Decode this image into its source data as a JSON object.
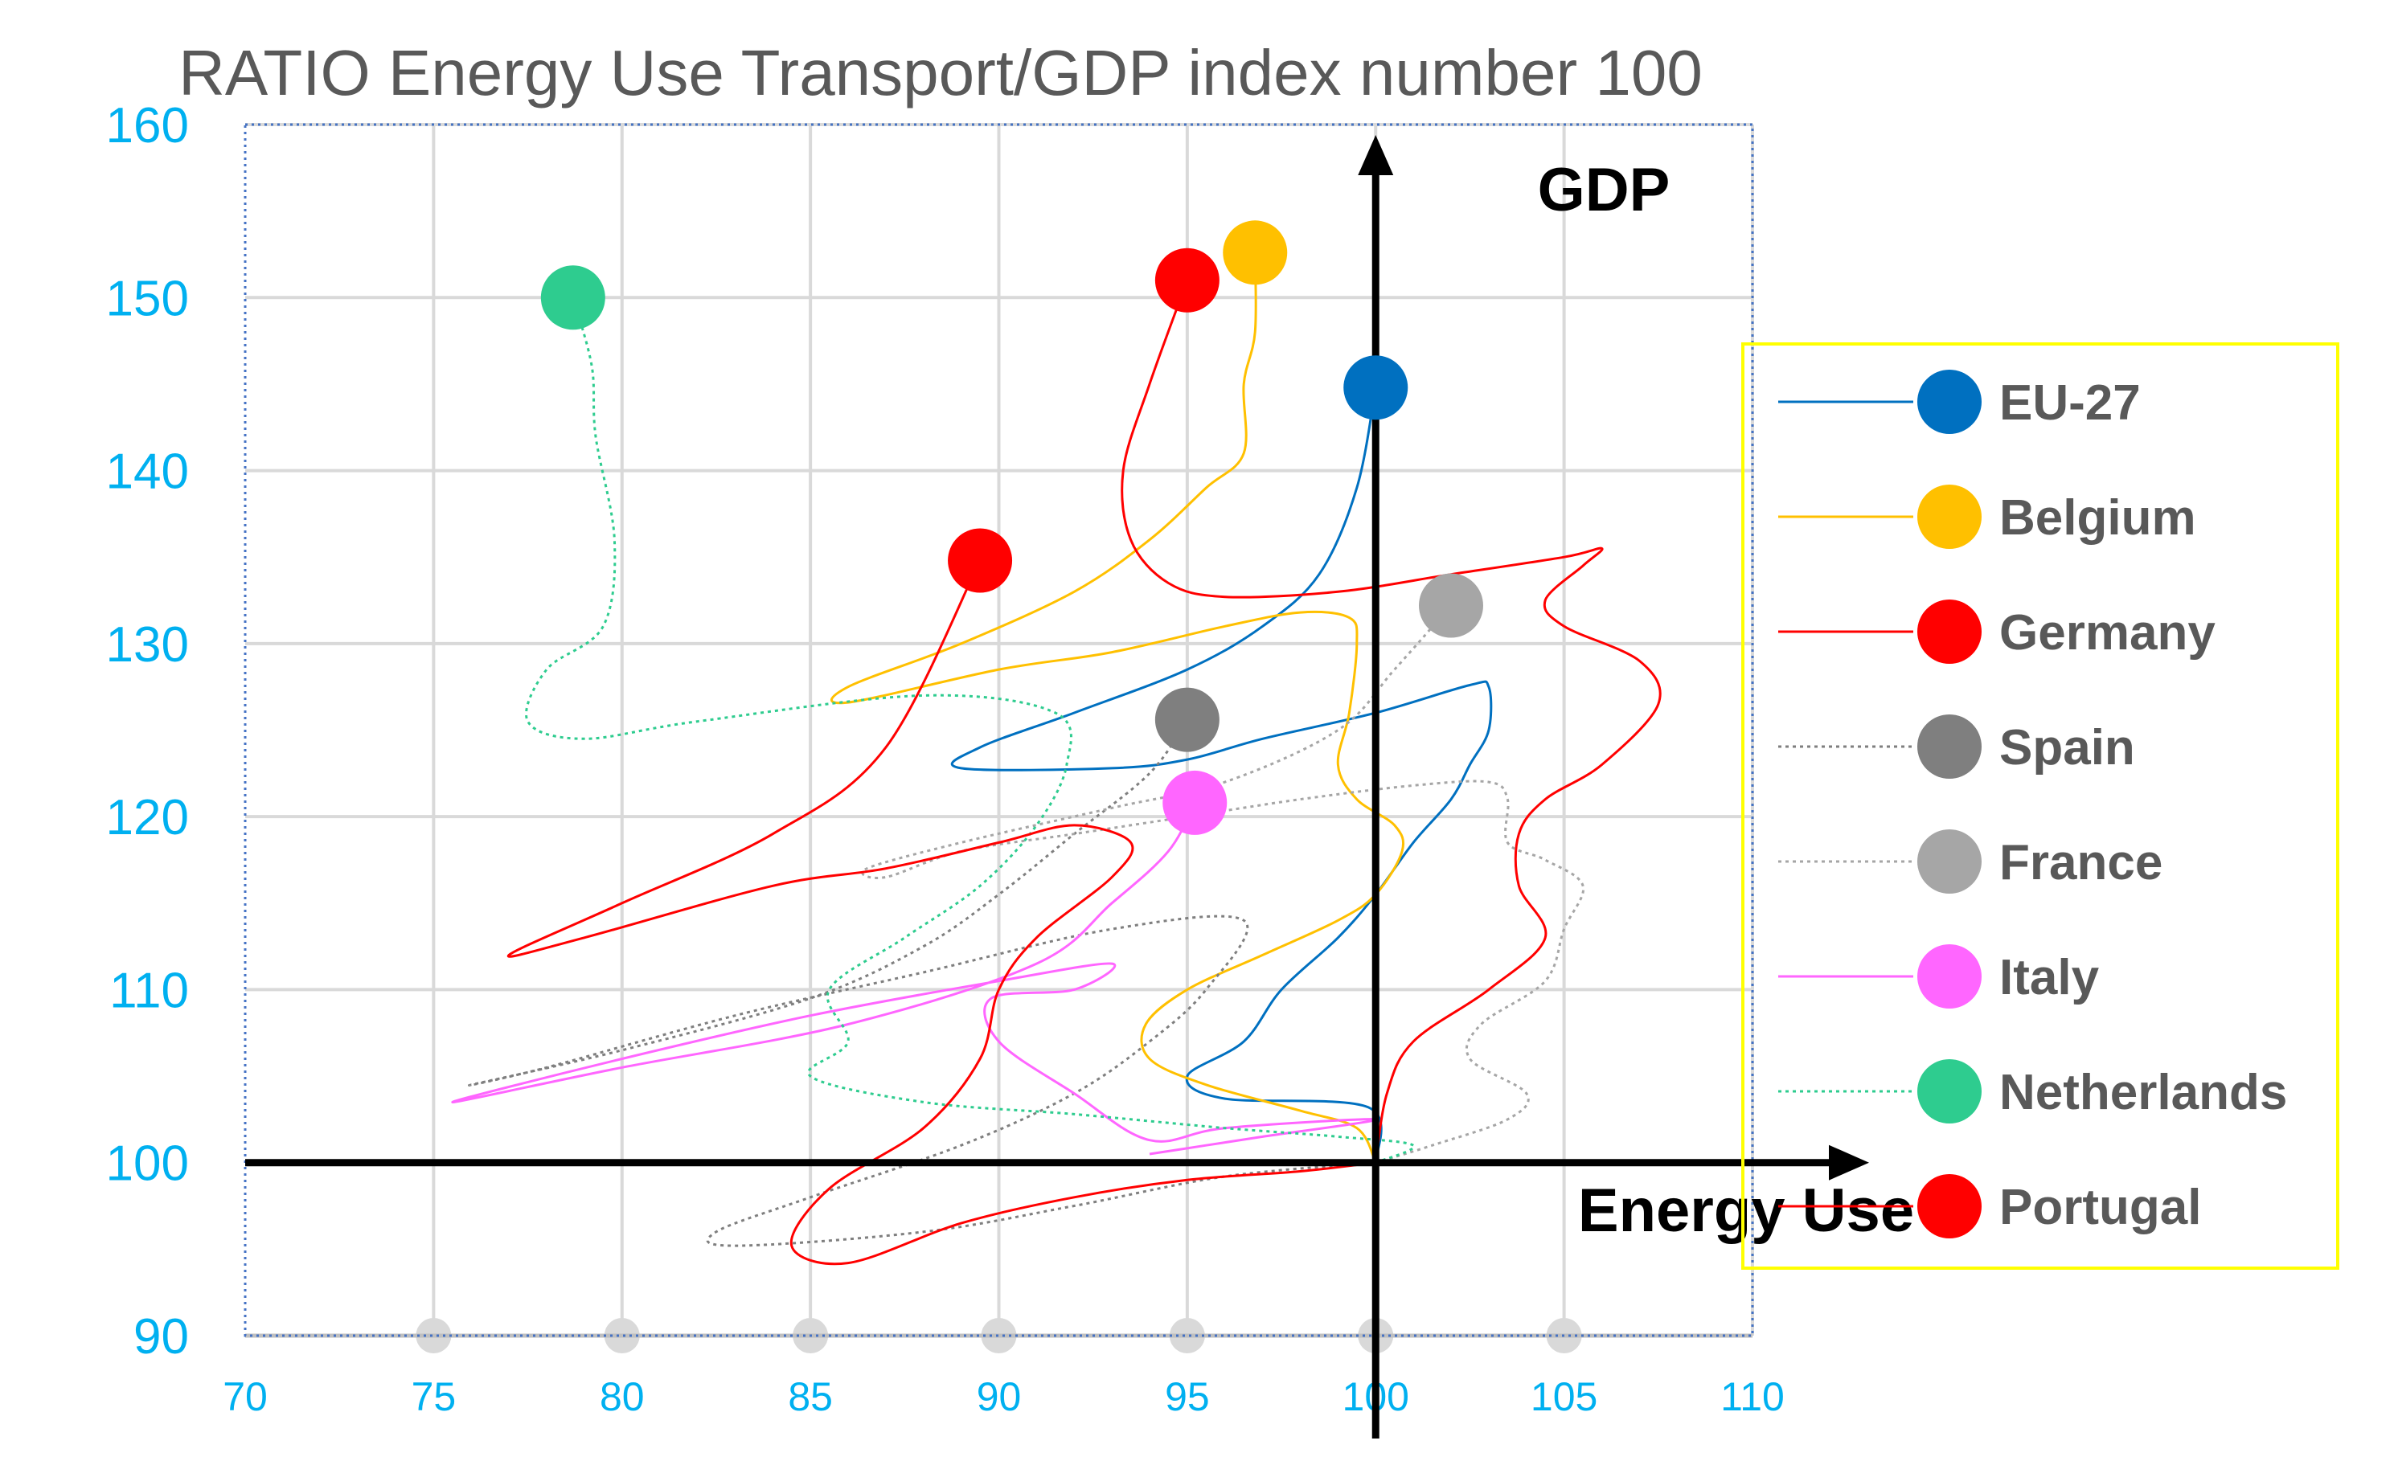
{
  "chart_data": {
    "type": "scatter",
    "title": "RATIO Energy Use Transport/GDP index number 100",
    "xlabel": "Energy Use",
    "ylabel": "GDP",
    "xlim": [
      70,
      110
    ],
    "ylim": [
      90,
      160
    ],
    "x_ticks": [
      70,
      75,
      80,
      85,
      90,
      95,
      100,
      105,
      110
    ],
    "y_ticks": [
      90,
      100,
      110,
      120,
      130,
      140,
      150,
      160
    ],
    "grid": true,
    "legend_position": "right",
    "colors": {
      "tick_label": "#00b0f0",
      "title": "#595959",
      "gridline": "#d9d9d9",
      "legend_border": "#ffff00"
    },
    "series": [
      {
        "name": "EU-27",
        "color": "#0070c0",
        "dash": "solid",
        "end": [
          100.0,
          144.8
        ],
        "path": [
          [
            100,
            100
          ],
          [
            99.8,
            103.2
          ],
          [
            96,
            103.7
          ],
          [
            95,
            105
          ],
          [
            96.5,
            107
          ],
          [
            97.5,
            110
          ],
          [
            99,
            113
          ],
          [
            100,
            115.5
          ],
          [
            101,
            118.5
          ],
          [
            102,
            121
          ],
          [
            102.5,
            123
          ],
          [
            103,
            125
          ],
          [
            103,
            127.5
          ],
          [
            102.5,
            127.6
          ],
          [
            100,
            126
          ],
          [
            97,
            124.5
          ],
          [
            95,
            123.3
          ],
          [
            93,
            122.8
          ],
          [
            89,
            122.8
          ],
          [
            89.5,
            124
          ],
          [
            92,
            126
          ],
          [
            95,
            128.5
          ],
          [
            97,
            131
          ],
          [
            98.5,
            134
          ],
          [
            99.5,
            139
          ],
          [
            100.0,
            144.8
          ]
        ]
      },
      {
        "name": "Belgium",
        "color": "#ffc000",
        "dash": "solid",
        "end": [
          96.8,
          152.6
        ],
        "path": [
          [
            100,
            100
          ],
          [
            99.5,
            102
          ],
          [
            98,
            103
          ],
          [
            95.5,
            104.5
          ],
          [
            94,
            106
          ],
          [
            93.9,
            108
          ],
          [
            95,
            110
          ],
          [
            97,
            112
          ],
          [
            99,
            114
          ],
          [
            100,
            115.5
          ],
          [
            100.7,
            118
          ],
          [
            100.5,
            119.5
          ],
          [
            99.5,
            121
          ],
          [
            99,
            123
          ],
          [
            99.3,
            126
          ],
          [
            99.5,
            130
          ],
          [
            99.3,
            131.5
          ],
          [
            98,
            131.8
          ],
          [
            96,
            131
          ],
          [
            93,
            129.5
          ],
          [
            90,
            128.5
          ],
          [
            86,
            126.6
          ],
          [
            86,
            127.5
          ],
          [
            89,
            130
          ],
          [
            92,
            133
          ],
          [
            94,
            136
          ],
          [
            95.5,
            139
          ],
          [
            96.5,
            141
          ],
          [
            96.5,
            145
          ],
          [
            96.8,
            148
          ],
          [
            96.8,
            152.6
          ]
        ]
      },
      {
        "name": "Germany",
        "color": "#ff0000",
        "dash": "solid",
        "end": [
          95.0,
          151.0
        ],
        "path": [
          [
            100,
            100
          ],
          [
            100.3,
            104
          ],
          [
            101,
            107
          ],
          [
            103,
            110
          ],
          [
            104.5,
            113
          ],
          [
            103.8,
            116
          ],
          [
            103.8,
            119
          ],
          [
            104.5,
            121
          ],
          [
            106,
            123
          ],
          [
            107.5,
            126.5
          ],
          [
            107,
            129
          ],
          [
            105,
            131
          ],
          [
            104.5,
            132.5
          ],
          [
            105.5,
            134.5
          ],
          [
            106,
            135.5
          ],
          [
            105,
            135
          ],
          [
            102,
            134
          ],
          [
            99,
            133
          ],
          [
            96,
            132.7
          ],
          [
            94.5,
            133.5
          ],
          [
            93.5,
            136
          ],
          [
            93.3,
            140
          ],
          [
            94,
            145
          ],
          [
            95.0,
            151.0
          ]
        ]
      },
      {
        "name": "Spain",
        "color": "#7f7f7f",
        "dash": "dotted",
        "end": [
          95.0,
          125.6
        ],
        "path": [
          [
            100,
            100
          ],
          [
            96,
            99.2
          ],
          [
            92,
            97.5
          ],
          [
            88,
            96
          ],
          [
            83,
            95.2
          ],
          [
            82.5,
            96
          ],
          [
            85,
            98
          ],
          [
            89,
            101
          ],
          [
            92,
            104
          ],
          [
            94,
            107
          ],
          [
            95.5,
            110
          ],
          [
            96.5,
            114
          ],
          [
            93,
            113.5
          ],
          [
            88,
            111
          ],
          [
            83,
            108.5
          ],
          [
            78,
            105.5
          ],
          [
            76,
            104.5
          ],
          [
            80,
            106.5
          ],
          [
            85,
            109.5
          ],
          [
            88,
            112.5
          ],
          [
            90,
            115.5
          ],
          [
            92,
            119
          ],
          [
            94,
            122.5
          ],
          [
            95.0,
            125.6
          ]
        ]
      },
      {
        "name": "France",
        "color": "#a6a6a6",
        "dash": "dotted",
        "end": [
          102.0,
          132.2
        ],
        "path": [
          [
            100,
            100
          ],
          [
            101.5,
            101
          ],
          [
            103.5,
            102.5
          ],
          [
            104,
            104
          ],
          [
            102.5,
            106
          ],
          [
            102.8,
            108
          ],
          [
            104.5,
            110.5
          ],
          [
            105,
            113.5
          ],
          [
            105.5,
            116
          ],
          [
            104.5,
            117.5
          ],
          [
            103.5,
            118.5
          ],
          [
            103.5,
            121
          ],
          [
            103,
            122
          ],
          [
            101,
            121.8
          ],
          [
            98,
            121
          ],
          [
            95,
            120
          ],
          [
            92,
            119
          ],
          [
            89,
            118
          ],
          [
            87,
            116.5
          ],
          [
            86.5,
            117
          ],
          [
            89,
            118.5
          ],
          [
            93,
            120.5
          ],
          [
            96,
            122
          ],
          [
            99,
            125
          ],
          [
            100.5,
            128.5
          ],
          [
            102.0,
            132.2
          ]
        ]
      },
      {
        "name": "Italy",
        "color": "#ff66ff",
        "dash": "solid",
        "end": [
          95.2,
          120.8
        ],
        "path": [
          [
            94,
            100.5
          ],
          [
            95.5,
            101
          ],
          [
            97,
            101.5
          ],
          [
            100,
            102.5
          ],
          [
            96,
            102
          ],
          [
            94,
            101.3
          ],
          [
            92,
            104
          ],
          [
            90,
            107
          ],
          [
            89.8,
            109.5
          ],
          [
            92,
            110
          ],
          [
            93,
            111.5
          ],
          [
            90,
            110.5
          ],
          [
            85,
            108.5
          ],
          [
            80,
            106
          ],
          [
            75.5,
            103.5
          ],
          [
            80,
            105.5
          ],
          [
            86,
            108
          ],
          [
            91,
            111.5
          ],
          [
            93,
            115
          ],
          [
            94.5,
            118
          ],
          [
            95.2,
            120.8
          ]
        ]
      },
      {
        "name": "Netherlands",
        "color": "#2ecc8f",
        "dash": "dotted",
        "end": [
          78.7,
          150.0
        ],
        "path": [
          [
            100,
            100
          ],
          [
            101,
            101
          ],
          [
            99,
            101.5
          ],
          [
            96,
            102
          ],
          [
            92,
            102.8
          ],
          [
            88,
            103.5
          ],
          [
            85,
            105
          ],
          [
            86,
            107
          ],
          [
            85.5,
            110
          ],
          [
            87.5,
            113
          ],
          [
            89.5,
            116
          ],
          [
            91,
            119.5
          ],
          [
            91.8,
            123
          ],
          [
            91.5,
            126
          ],
          [
            88,
            127
          ],
          [
            82,
            125.5
          ],
          [
            79,
            124.5
          ],
          [
            77.5,
            125.5
          ],
          [
            78,
            128.5
          ],
          [
            79.5,
            131
          ],
          [
            79.8,
            136
          ],
          [
            79.3,
            142
          ],
          [
            79.2,
            146
          ],
          [
            78.7,
            150.0
          ]
        ]
      },
      {
        "name": "Portugal",
        "color": "#ff0000",
        "dash": "solid",
        "end": [
          89.5,
          134.8
        ],
        "path": [
          [
            100,
            100
          ],
          [
            98,
            99.5
          ],
          [
            95,
            99
          ],
          [
            92,
            98
          ],
          [
            89,
            96.5
          ],
          [
            86,
            94.2
          ],
          [
            84.5,
            95.2
          ],
          [
            85.5,
            98.5
          ],
          [
            88,
            102
          ],
          [
            89.5,
            106
          ],
          [
            90,
            110
          ],
          [
            91,
            113
          ],
          [
            93,
            116.5
          ],
          [
            93.5,
            118.5
          ],
          [
            92,
            119.5
          ],
          [
            90,
            118.5
          ],
          [
            87,
            117
          ],
          [
            84,
            116
          ],
          [
            79,
            113
          ],
          [
            77,
            112
          ],
          [
            80,
            115
          ],
          [
            84,
            119
          ],
          [
            87,
            124
          ],
          [
            89.5,
            134.8
          ]
        ]
      }
    ]
  }
}
